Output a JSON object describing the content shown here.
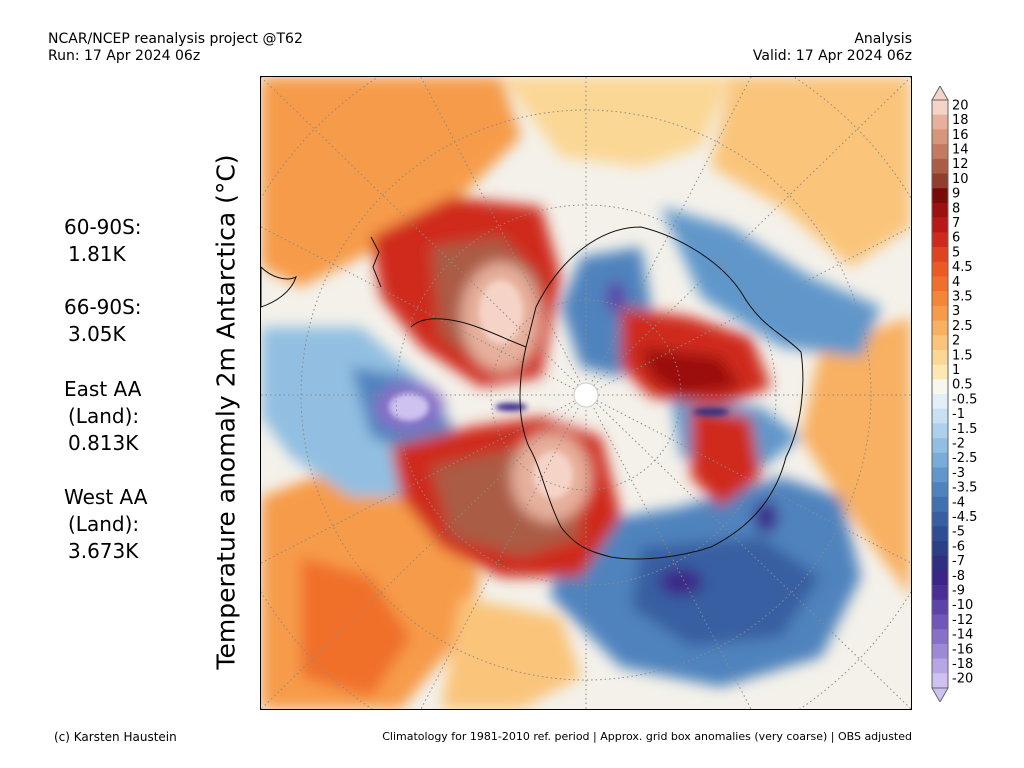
{
  "header": {
    "left_line1": "NCAR/NCEP reanalysis project @T62",
    "left_line2": "Run: 17 Apr 2024 06z",
    "right_line1": "Analysis",
    "right_line2": "Valid: 17 Apr 2024 06z"
  },
  "ylabel": "Temperature anomaly 2m Antarctica (°C)",
  "stats": [
    {
      "label": "60-90S:",
      "value": "1.81K"
    },
    {
      "label": "66-90S:",
      "value": "3.05K"
    },
    {
      "label": "East AA",
      "label2": "(Land):",
      "value": "0.813K"
    },
    {
      "label": "West AA",
      "label2": "(Land):",
      "value": "3.673K"
    }
  ],
  "colorbar": {
    "labels": [
      "20",
      "18",
      "16",
      "14",
      "12",
      "10",
      "9",
      "8",
      "7",
      "6",
      "5",
      "4.5",
      "4",
      "3.5",
      "3",
      "2.5",
      "2",
      "1.5",
      "1",
      "0.5",
      "-0.5",
      "-1",
      "-1.5",
      "-2",
      "-2.5",
      "-3",
      "-3.5",
      "-4",
      "-4.5",
      "-5",
      "-6",
      "-7",
      "-8",
      "-9",
      "-10",
      "-12",
      "-14",
      "-16",
      "-18",
      "-20"
    ],
    "colors": [
      "#f5d3c7",
      "#e6b09c",
      "#d5967c",
      "#c27a60",
      "#ab5c44",
      "#8f3f2c",
      "#7a0a0a",
      "#9c1010",
      "#b81818",
      "#cf2a1e",
      "#e0431f",
      "#ea5a22",
      "#f06f2c",
      "#f48638",
      "#f69b4a",
      "#f8b062",
      "#fac47a",
      "#fbd795",
      "#fde8b4",
      "#f7f7f0",
      "#e2eef8",
      "#c8e0f2",
      "#aed0ea",
      "#92bfe1",
      "#79acd6",
      "#6197cb",
      "#4f83bd",
      "#4170ae",
      "#385ea1",
      "#2f4d94",
      "#2a3f86",
      "#2e2f80",
      "#3a2588",
      "#4a2e96",
      "#5b44a8",
      "#7058b8",
      "#8670c8",
      "#9d8ad6",
      "#b6a6e4",
      "#cec2f0"
    ]
  },
  "footer": {
    "left": "(c) Karsten Haustein",
    "right": "Climatology for 1981-2010 ref. period | Approx. grid box anomalies (very coarse) | OBS adjusted"
  }
}
